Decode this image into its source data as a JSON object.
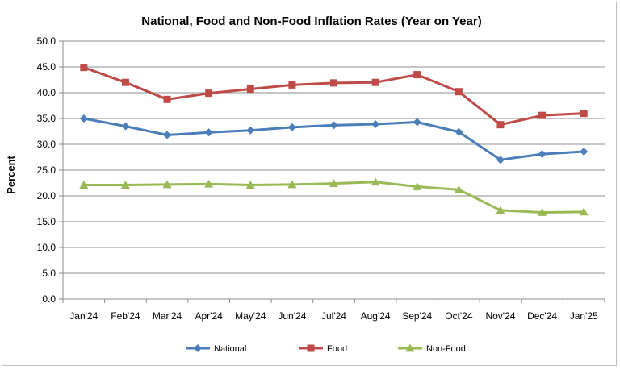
{
  "chart_data": {
    "type": "line",
    "title": "National, Food and Non-Food Inflation Rates (Year on Year)",
    "xlabel": "",
    "ylabel": "Percent",
    "ylim": [
      0,
      50
    ],
    "ytick_labels": [
      "0.0",
      "5.0",
      "10.0",
      "15.0",
      "20.0",
      "25.0",
      "30.0",
      "35.0",
      "40.0",
      "45.0",
      "50.0"
    ],
    "categories": [
      "Jan'24",
      "Feb'24",
      "Mar'24",
      "Apr'24",
      "May'24",
      "Jun'24",
      "Jul'24",
      "Aug'24",
      "Sep'24",
      "Oct'24",
      "Nov'24",
      "Dec'24",
      "Jan'25"
    ],
    "grid": true,
    "legend_position": "bottom",
    "series": [
      {
        "name": "National",
        "color": "#4a7ebb",
        "marker": "diamond",
        "values": [
          35.0,
          33.5,
          31.8,
          32.3,
          32.7,
          33.3,
          33.7,
          33.9,
          34.3,
          32.4,
          27.0,
          28.1,
          28.6
        ]
      },
      {
        "name": "Food",
        "color": "#be4b48",
        "marker": "square",
        "values": [
          44.9,
          42.0,
          38.7,
          39.9,
          40.7,
          41.5,
          41.9,
          42.0,
          43.5,
          40.2,
          33.8,
          35.6,
          36.0
        ]
      },
      {
        "name": "Non-Food",
        "color": "#98b954",
        "marker": "triangle",
        "values": [
          22.1,
          22.1,
          22.2,
          22.3,
          22.1,
          22.2,
          22.4,
          22.7,
          21.8,
          21.2,
          17.2,
          16.8,
          16.9
        ]
      }
    ]
  }
}
